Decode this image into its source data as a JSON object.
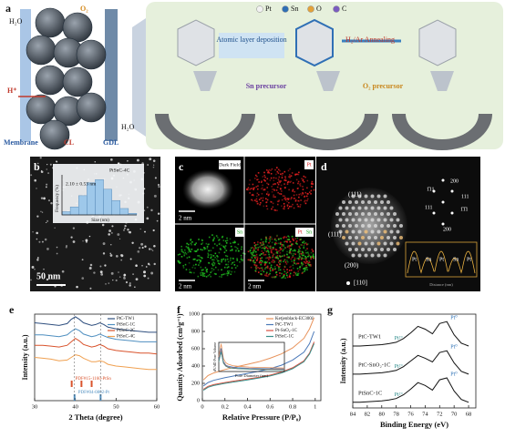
{
  "panels": {
    "a": {
      "label": "a",
      "water_in": "H₂O",
      "oxygen": "O₂",
      "proton": "H⁺",
      "membrane": "Membrane",
      "cl": "CL",
      "gdl": "GDL",
      "water_out": "H₂O",
      "legend": [
        "Pt",
        "Sn",
        "O",
        "C"
      ],
      "step1": "Atomic layer deposition",
      "step2": "H₂/Ar Annealing",
      "sn_precursor": "Sn precursor",
      "o2_precursor": "O₂ precursor"
    },
    "b": {
      "label": "b",
      "sample": "PtSnC-4C",
      "size": "2.10 ± 0.53 nm",
      "ylabel": "Frequency (%)",
      "xlabel": "Size (nm)",
      "scale": "50 nm",
      "histogram": {
        "type": "histogram",
        "bins": [
          0.5,
          1,
          1.5,
          2,
          2.5,
          3,
          3.5,
          4,
          4.5,
          5
        ],
        "counts": [
          2,
          5,
          12,
          20,
          22,
          16,
          9,
          4,
          1
        ],
        "ylim": [
          0,
          25
        ],
        "color": "#9ec8ea"
      }
    },
    "c": {
      "label": "c",
      "tiles": [
        "Dark Field",
        "Pt",
        "Sn",
        "Pt",
        "Sn"
      ],
      "scale": "2 nm"
    },
    "d": {
      "label": "d",
      "planes": [
        "(111)",
        "(111)",
        "(200)"
      ],
      "zone": "[110]",
      "fft": [
        "200",
        "1̄11",
        "111",
        "111",
        "1̄1̄1",
        "200"
      ],
      "profile": [
        "Pt",
        "Sn",
        "Pt",
        "Sn",
        "Pt"
      ],
      "profile_axis": "Distance (nm)"
    }
  },
  "chart_data": [
    {
      "type": "line",
      "label": "e",
      "xlabel": "2 Theta (degree)",
      "ylabel": "Intensity (a.u.)",
      "x": [
        30,
        32,
        34,
        36,
        38,
        39,
        40,
        41,
        42,
        44,
        45,
        46,
        47,
        48,
        50,
        52,
        54,
        56,
        58,
        60
      ],
      "xlim": [
        30,
        60
      ],
      "xticks": [
        30,
        40,
        50,
        60
      ],
      "ylim": [
        0,
        10
      ],
      "series": [
        {
          "name": "PtC-TW1",
          "color": "#2f4f7f",
          "values": [
            9.0,
            8.9,
            8.8,
            8.7,
            8.9,
            9.4,
            9.7,
            9.4,
            9.0,
            8.7,
            8.8,
            9.0,
            8.8,
            8.5,
            8.3,
            8.2,
            8.1,
            8.0,
            7.9,
            7.9
          ]
        },
        {
          "name": "PtSnC-1C",
          "color": "#4f8fc0",
          "values": [
            7.6,
            7.6,
            7.5,
            7.4,
            7.6,
            8.0,
            8.3,
            8.1,
            7.7,
            7.4,
            7.5,
            7.7,
            7.5,
            7.3,
            7.1,
            7.0,
            6.9,
            6.8,
            6.8,
            6.8
          ]
        },
        {
          "name": "PtSnC-2C",
          "color": "#d9532c",
          "values": [
            6.4,
            6.4,
            6.3,
            6.2,
            6.4,
            6.8,
            7.2,
            6.9,
            6.5,
            6.2,
            6.3,
            6.5,
            6.3,
            6.0,
            5.8,
            5.7,
            5.6,
            5.5,
            5.5,
            5.4
          ]
        },
        {
          "name": "PtSnC-4C",
          "color": "#f0a050",
          "values": [
            5.0,
            4.9,
            4.8,
            4.6,
            4.7,
            5.0,
            5.3,
            5.2,
            4.9,
            4.5,
            4.5,
            4.6,
            4.5,
            4.2,
            4.0,
            3.9,
            3.8,
            3.7,
            3.6,
            3.6
          ]
        }
      ],
      "references": [
        {
          "name": "PDF#15-1160-PtSn",
          "color": "#d9532c",
          "positions": [
            39.1,
            41.5,
            44.0
          ]
        },
        {
          "name": "PDF#04-0802-Pt",
          "color": "#4f8fc0",
          "positions": [
            39.8,
            46.2
          ]
        }
      ]
    },
    {
      "type": "line",
      "label": "f",
      "xlabel": "Relative Pressure (P/P₀)",
      "ylabel": "Quantity Adsorbed (cm³g⁻¹)",
      "x": [
        0.01,
        0.05,
        0.1,
        0.2,
        0.3,
        0.4,
        0.5,
        0.6,
        0.7,
        0.8,
        0.9,
        0.95,
        0.99
      ],
      "xlim": [
        0,
        1.05
      ],
      "xticks": [
        0.0,
        0.2,
        0.4,
        0.6,
        0.8,
        1.0
      ],
      "ylim": [
        0,
        1000
      ],
      "yticks": [
        0,
        200,
        400,
        600,
        800,
        1000
      ],
      "series": [
        {
          "name": "Ketjenblack-EC300J",
          "color": "#e8925a",
          "values": [
            240,
            290,
            320,
            360,
            390,
            420,
            450,
            490,
            540,
            610,
            720,
            830,
            960
          ]
        },
        {
          "name": "PtC-TW1",
          "color": "#4a78b8",
          "values": [
            170,
            210,
            235,
            265,
            290,
            315,
            340,
            370,
            410,
            470,
            560,
            660,
            800
          ]
        },
        {
          "name": "Pt-SnO₂-1C",
          "color": "#d95040",
          "values": [
            130,
            165,
            185,
            210,
            230,
            250,
            270,
            295,
            330,
            380,
            460,
            550,
            680
          ]
        },
        {
          "name": "PtSnC-1C",
          "color": "#3a8f8a",
          "values": [
            120,
            155,
            175,
            200,
            220,
            240,
            262,
            285,
            320,
            370,
            450,
            540,
            660
          ]
        }
      ],
      "inset": {
        "type": "line",
        "xlabel": "Pore Diameter (nm)",
        "ylabel": "dV/dD Pore Volume",
        "x": [
          2,
          3,
          4,
          5,
          6,
          8,
          10,
          15,
          20,
          30
        ],
        "xlim": [
          2,
          30
        ],
        "ylim": [
          0,
          1
        ],
        "series": [
          {
            "color": "#e8925a",
            "values": [
              0.5,
              0.95,
              0.45,
              0.3,
              0.25,
              0.2,
              0.18,
              0.15,
              0.14,
              0.12
            ]
          },
          {
            "color": "#4a78b8",
            "values": [
              0.4,
              0.8,
              0.35,
              0.22,
              0.18,
              0.15,
              0.13,
              0.11,
              0.1,
              0.09
            ]
          },
          {
            "color": "#d95040",
            "values": [
              0.35,
              0.7,
              0.3,
              0.2,
              0.15,
              0.12,
              0.1,
              0.09,
              0.08,
              0.07
            ]
          },
          {
            "color": "#3a8f8a",
            "values": [
              0.33,
              0.68,
              0.28,
              0.18,
              0.14,
              0.11,
              0.1,
              0.08,
              0.07,
              0.06
            ]
          }
        ]
      }
    },
    {
      "type": "line",
      "label": "g",
      "xlabel": "Binding Energy (eV)",
      "ylabel": "Intensity (a.u.)",
      "x": [
        84,
        83,
        82,
        81,
        80,
        79,
        78,
        77,
        76,
        75,
        74,
        73,
        72,
        71,
        70,
        69,
        68
      ],
      "xlim": [
        84,
        67
      ],
      "xticks": [
        84,
        82,
        80,
        78,
        76,
        74,
        72,
        70,
        68
      ],
      "ylim": [
        0,
        10
      ],
      "peak_labels": [
        "Pt²⁺",
        "Pt⁰"
      ],
      "series": [
        {
          "name": "PtC-TW1",
          "color": "#111111",
          "values": [
            6.6,
            6.6,
            6.65,
            6.7,
            6.75,
            6.85,
            7.0,
            7.4,
            8.0,
            8.7,
            8.4,
            7.9,
            9.0,
            9.2,
            7.8,
            6.9,
            6.6
          ]
        },
        {
          "name": "PtC-SnO₂-1C",
          "color": "#111111",
          "values": [
            3.6,
            3.6,
            3.65,
            3.7,
            3.75,
            3.85,
            4.0,
            4.4,
            5.0,
            5.6,
            5.3,
            4.9,
            5.9,
            6.1,
            4.8,
            3.9,
            3.6
          ]
        },
        {
          "name": "PtSnC-1C",
          "color": "#111111",
          "values": [
            0.6,
            0.6,
            0.65,
            0.7,
            0.75,
            0.85,
            1.0,
            1.4,
            2.0,
            2.7,
            2.4,
            1.9,
            3.0,
            3.2,
            1.8,
            0.9,
            0.6
          ]
        }
      ]
    }
  ]
}
